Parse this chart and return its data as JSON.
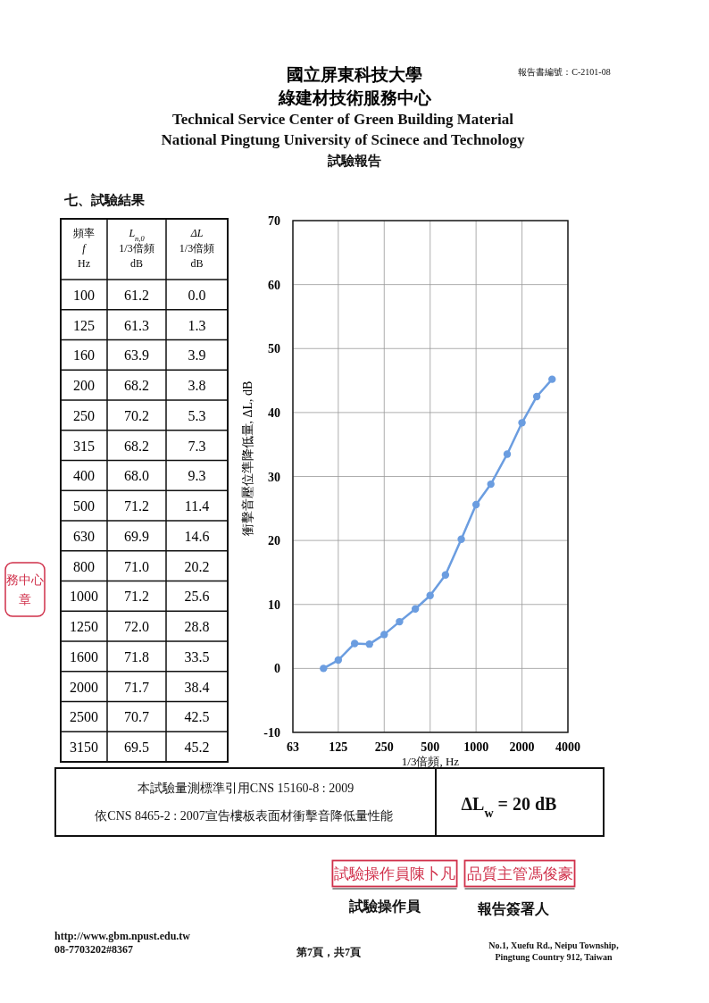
{
  "chart_data": [
    {
      "type": "other",
      "title": "國立屏東科技大學",
      "subtitle": "綠建材技術服務中心",
      "xlabel": "頻率 f Hz",
      "categories": [
        "100",
        "125",
        "160",
        "200",
        "250",
        "315",
        "400",
        "500",
        "630",
        "800",
        "1000",
        "1250",
        "1600",
        "2000",
        "2500",
        "3150"
      ],
      "series": [
        {
          "name": "L$_{n,0}$ 1/3倍頻 dB",
          "values": [
            61.2,
            61.3,
            63.9,
            68.2,
            70.2,
            68.2,
            68.0,
            71.2,
            69.9,
            71.0,
            71.2,
            72.0,
            71.8,
            71.7,
            70.7,
            69.5
          ],
          "value_labels": [
            "61.2",
            "61.3",
            "63.9",
            "68.2",
            "70.2",
            "68.2",
            "68.0",
            "71.2",
            "69.9",
            "71.0",
            "71.2",
            "72.0",
            "71.8",
            "71.7",
            "70.7",
            "69.5"
          ]
        },
        {
          "name": "ΔL 1/3倍頻 dB",
          "values": [
            0.0,
            1.3,
            3.9,
            3.8,
            5.3,
            7.3,
            9.3,
            11.4,
            14.6,
            20.2,
            25.6,
            28.8,
            33.5,
            38.4,
            42.5,
            45.2
          ],
          "value_labels": [
            "0.0",
            "1.3",
            "3.9",
            "3.8",
            "5.3",
            "7.3",
            "9.3",
            "11.4",
            "14.6",
            "20.2",
            "25.6",
            "28.8",
            "33.5",
            "38.4",
            "42.5",
            "45.2"
          ]
        }
      ],
      "annotations": [
        "Technical Service Center of Green Building Material",
        "National Pingtung University of Scinece and Technology",
        "試驗報告",
        "報告書編號：C-2101-08",
        "七、試驗結果",
        "本試驗量測標準引用CNS 15160-8 : 2009",
        "依CNS 8465-2 : 2007宣告樓板表面材衝擊音降低量性能",
        "ΔL$_{w}$ = 20 dB",
        "試驗操作員陳卜凡",
        "品質主管馮俊豪",
        "試驗操作員",
        "報告簽署人",
        "http://www.gbm.npust.edu.tw",
        "08-7703202#8367",
        "第7頁，共7頁",
        "No.1, Xuefu Rd., Neipu Township,",
        "Pingtung Country 912, Taiwan",
        "務中心章"
      ]
    },
    {
      "type": "line",
      "xlabel": "1/3倍頻, Hz",
      "ylabel": "衝擊音壓位準降低量, ΔL, dB",
      "x": [
        100,
        125,
        160,
        200,
        250,
        315,
        400,
        500,
        630,
        800,
        1000,
        1250,
        1600,
        2000,
        2500,
        3150
      ],
      "series": [
        {
          "color": "#6b9de0",
          "values": [
            0.0,
            1.3,
            3.9,
            3.8,
            5.3,
            7.3,
            9.3,
            11.4,
            14.6,
            20.2,
            25.6,
            28.8,
            33.5,
            38.4,
            42.5,
            45.2
          ]
        }
      ],
      "log": "x",
      "xlim": [
        63,
        4000
      ],
      "xticks": [
        63,
        125,
        250,
        500,
        1000,
        2000,
        4000
      ],
      "ylim": [
        -10,
        70
      ],
      "yticks": [
        -10,
        0,
        10,
        20,
        30,
        40,
        50,
        60,
        70
      ],
      "grid": true,
      "marker": "circle",
      "line_style": "solid"
    }
  ]
}
